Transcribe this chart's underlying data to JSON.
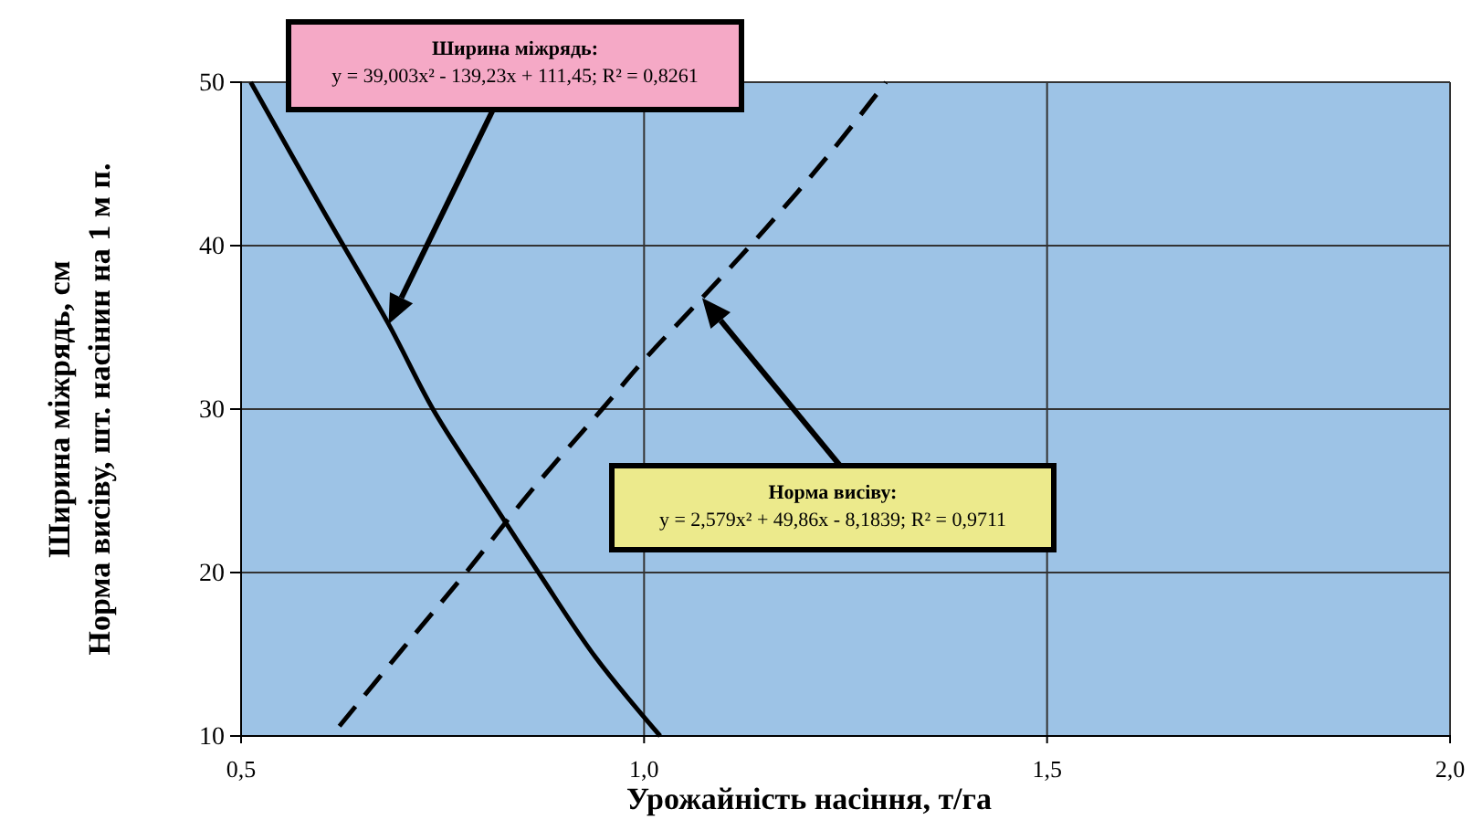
{
  "chart_data": {
    "type": "line",
    "xlabel": "Урожайність насіння, т/га",
    "ylabel": "Ширина міжрядь, см\nНорма висіву, шт. насінин на 1 м п.",
    "xlim": [
      0.5,
      2.0
    ],
    "xticks": [
      {
        "value": 0.5,
        "label": "0,5"
      },
      {
        "value": 1.0,
        "label": "1,0"
      },
      {
        "value": 1.5,
        "label": "1,5"
      },
      {
        "value": 2.0,
        "label": "2,0"
      }
    ],
    "ylim": [
      10,
      50
    ],
    "yticks": [
      10,
      20,
      30,
      40,
      50
    ],
    "grid": true,
    "series": [
      {
        "color": "#000000",
        "line_style": "solid",
        "x": [
          0.512,
          0.6,
          0.683,
          0.738,
          0.8,
          0.869,
          0.94,
          1.02
        ],
        "values": [
          50,
          42.3,
          35.2,
          30,
          25.2,
          20,
          14.8,
          10
        ]
      },
      {
        "color": "#000000",
        "line_style": "dashed",
        "x": [
          0.622,
          0.7,
          0.779,
          0.86,
          0.948,
          1.0,
          1.072,
          1.15,
          1.23,
          1.3
        ],
        "values": [
          10.6,
          15.3,
          20,
          25,
          30,
          33,
          36.8,
          41,
          45.6,
          50
        ]
      }
    ],
    "annotations": [
      "Ширина міжрядь:\ny = 39,003x² - 139,23x + 111,45; R² = 0,8261",
      "Норма висіву:\ny = 2,579x² + 49,86x - 8,1839; R² = 0,9711"
    ]
  }
}
